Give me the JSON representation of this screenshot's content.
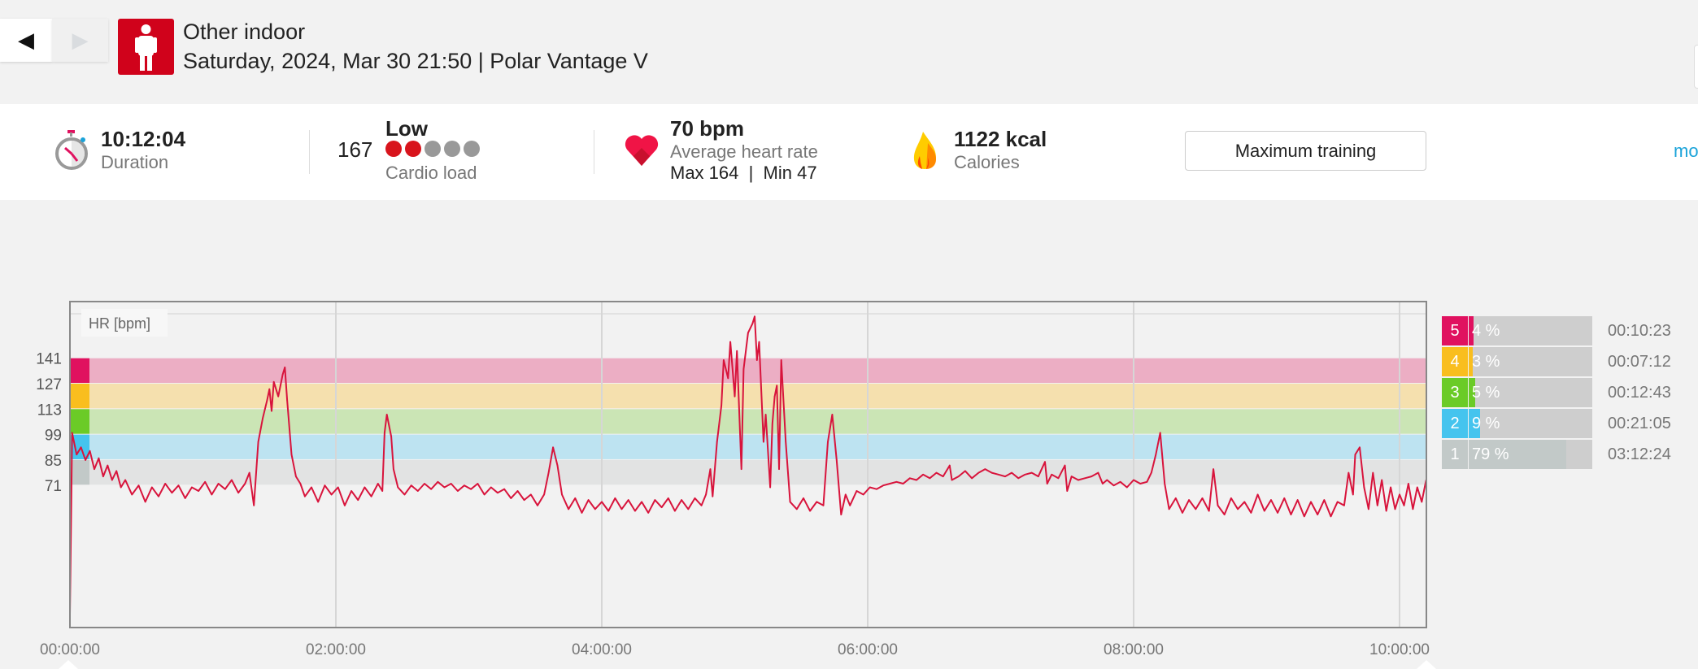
{
  "nav": {
    "back_icon": "◀",
    "forward_icon": "▶"
  },
  "header": {
    "sport_icon": "person-standing-icon",
    "title": "Other indoor",
    "subtitle": "Saturday, 2024, Mar 30 21:50 | Polar Vantage V"
  },
  "summary": {
    "duration": {
      "value": "10:12:04",
      "label": "Duration"
    },
    "cardio": {
      "value": "167",
      "level": "Low",
      "label": "Cardio load",
      "dots_filled": 2,
      "dots_total": 5
    },
    "heart_rate": {
      "value": "70 bpm",
      "label": "Average heart rate",
      "minmax": "Max 164  |  Min 47"
    },
    "calories": {
      "value": "1122 kcal",
      "label": "Calories"
    },
    "training_button": "Maximum training",
    "more_link": "mo"
  },
  "colors": {
    "line": "#d8143c",
    "accent": "#d0021b",
    "link": "#1aa3d9"
  },
  "zones": [
    {
      "zone": "5",
      "percent": 4,
      "percent_label": "4 %",
      "time": "00:10:23",
      "color": "#e0115f",
      "band": "#ecaec4",
      "range": [
        127,
        141
      ]
    },
    {
      "zone": "4",
      "percent": 3,
      "percent_label": "3 %",
      "time": "00:07:12",
      "color": "#f9be1e",
      "band": "#f5e0ae",
      "range": [
        113,
        127
      ]
    },
    {
      "zone": "3",
      "percent": 5,
      "percent_label": "5 %",
      "time": "00:12:43",
      "color": "#6bcb27",
      "band": "#cbe5b5",
      "range": [
        99,
        113
      ]
    },
    {
      "zone": "2",
      "percent": 9,
      "percent_label": "9 %",
      "time": "00:21:05",
      "color": "#45c4ee",
      "band": "#bde3f1",
      "range": [
        85,
        99
      ]
    },
    {
      "zone": "1",
      "percent": 79,
      "percent_label": "79 %",
      "time": "03:12:24",
      "color": "#c2c9c8",
      "band": "#e2e3e3",
      "range": [
        71,
        85
      ]
    }
  ],
  "chart_data": {
    "type": "line",
    "title": "",
    "ylabel": "HR [bpm]",
    "xlabel": "",
    "x_unit": "minutes",
    "xlim": [
      0,
      612
    ],
    "ylim": [
      -7,
      171
    ],
    "yticks": [
      141,
      127,
      113,
      99,
      85,
      71
    ],
    "xticks": [
      {
        "value": 0,
        "label": "00:00:00"
      },
      {
        "value": 120,
        "label": "02:00:00"
      },
      {
        "value": 240,
        "label": "04:00:00"
      },
      {
        "value": 360,
        "label": "06:00:00"
      },
      {
        "value": 480,
        "label": "08:00:00"
      },
      {
        "value": 600,
        "label": "10:00:00"
      }
    ],
    "grid": true,
    "series": [
      {
        "name": "HR",
        "points": [
          [
            0,
            0
          ],
          [
            1,
            100
          ],
          [
            3,
            88
          ],
          [
            5,
            92
          ],
          [
            7,
            85
          ],
          [
            9,
            90
          ],
          [
            11,
            80
          ],
          [
            13,
            86
          ],
          [
            15,
            76
          ],
          [
            17,
            82
          ],
          [
            19,
            74
          ],
          [
            21,
            79
          ],
          [
            23,
            70
          ],
          [
            25,
            74
          ],
          [
            28,
            66
          ],
          [
            31,
            71
          ],
          [
            34,
            62
          ],
          [
            37,
            70
          ],
          [
            40,
            65
          ],
          [
            43,
            72
          ],
          [
            46,
            67
          ],
          [
            49,
            71
          ],
          [
            52,
            64
          ],
          [
            55,
            70
          ],
          [
            58,
            68
          ],
          [
            61,
            73
          ],
          [
            64,
            66
          ],
          [
            67,
            72
          ],
          [
            70,
            69
          ],
          [
            73,
            74
          ],
          [
            76,
            67
          ],
          [
            79,
            72
          ],
          [
            81,
            78
          ],
          [
            83,
            60
          ],
          [
            85,
            95
          ],
          [
            87,
            108
          ],
          [
            89,
            118
          ],
          [
            90,
            124
          ],
          [
            91,
            112
          ],
          [
            92,
            128
          ],
          [
            94,
            120
          ],
          [
            96,
            132
          ],
          [
            97,
            136
          ],
          [
            98,
            118
          ],
          [
            100,
            88
          ],
          [
            102,
            76
          ],
          [
            104,
            72
          ],
          [
            106,
            65
          ],
          [
            109,
            70
          ],
          [
            112,
            62
          ],
          [
            115,
            71
          ],
          [
            118,
            66
          ],
          [
            121,
            70
          ],
          [
            124,
            60
          ],
          [
            127,
            68
          ],
          [
            130,
            63
          ],
          [
            133,
            70
          ],
          [
            136,
            65
          ],
          [
            139,
            72
          ],
          [
            141,
            68
          ],
          [
            142,
            100
          ],
          [
            143,
            110
          ],
          [
            144,
            104
          ],
          [
            145,
            98
          ],
          [
            146,
            80
          ],
          [
            148,
            70
          ],
          [
            151,
            66
          ],
          [
            154,
            71
          ],
          [
            157,
            68
          ],
          [
            160,
            72
          ],
          [
            163,
            69
          ],
          [
            166,
            73
          ],
          [
            169,
            70
          ],
          [
            172,
            72
          ],
          [
            175,
            68
          ],
          [
            178,
            71
          ],
          [
            181,
            69
          ],
          [
            184,
            72
          ],
          [
            187,
            66
          ],
          [
            190,
            70
          ],
          [
            193,
            67
          ],
          [
            196,
            69
          ],
          [
            199,
            64
          ],
          [
            202,
            68
          ],
          [
            205,
            63
          ],
          [
            208,
            66
          ],
          [
            211,
            60
          ],
          [
            214,
            66
          ],
          [
            216,
            78
          ],
          [
            218,
            92
          ],
          [
            220,
            82
          ],
          [
            222,
            66
          ],
          [
            225,
            58
          ],
          [
            228,
            64
          ],
          [
            231,
            56
          ],
          [
            234,
            63
          ],
          [
            237,
            58
          ],
          [
            240,
            62
          ],
          [
            243,
            57
          ],
          [
            246,
            64
          ],
          [
            249,
            58
          ],
          [
            252,
            63
          ],
          [
            255,
            57
          ],
          [
            258,
            62
          ],
          [
            261,
            56
          ],
          [
            264,
            63
          ],
          [
            267,
            59
          ],
          [
            270,
            64
          ],
          [
            273,
            57
          ],
          [
            276,
            63
          ],
          [
            279,
            58
          ],
          [
            282,
            64
          ],
          [
            285,
            60
          ],
          [
            287,
            66
          ],
          [
            289,
            80
          ],
          [
            290,
            65
          ],
          [
            292,
            95
          ],
          [
            294,
            115
          ],
          [
            295,
            140
          ],
          [
            297,
            130
          ],
          [
            298,
            150
          ],
          [
            300,
            120
          ],
          [
            301,
            145
          ],
          [
            303,
            80
          ],
          [
            304,
            135
          ],
          [
            306,
            155
          ],
          [
            308,
            160
          ],
          [
            309,
            164
          ],
          [
            310,
            140
          ],
          [
            311,
            150
          ],
          [
            313,
            95
          ],
          [
            314,
            110
          ],
          [
            316,
            70
          ],
          [
            317,
            105
          ],
          [
            318,
            120
          ],
          [
            319,
            126
          ],
          [
            320,
            80
          ],
          [
            321,
            140
          ],
          [
            323,
            95
          ],
          [
            325,
            62
          ],
          [
            328,
            58
          ],
          [
            331,
            64
          ],
          [
            334,
            57
          ],
          [
            337,
            62
          ],
          [
            340,
            60
          ],
          [
            342,
            95
          ],
          [
            344,
            110
          ],
          [
            346,
            85
          ],
          [
            348,
            55
          ],
          [
            350,
            66
          ],
          [
            352,
            60
          ],
          [
            355,
            68
          ],
          [
            358,
            66
          ],
          [
            361,
            70
          ],
          [
            364,
            69
          ],
          [
            367,
            71
          ],
          [
            370,
            72
          ],
          [
            373,
            73
          ],
          [
            376,
            72
          ],
          [
            379,
            75
          ],
          [
            382,
            74
          ],
          [
            385,
            77
          ],
          [
            388,
            75
          ],
          [
            391,
            78
          ],
          [
            394,
            76
          ],
          [
            397,
            82
          ],
          [
            398,
            74
          ],
          [
            401,
            76
          ],
          [
            404,
            79
          ],
          [
            407,
            75
          ],
          [
            410,
            78
          ],
          [
            413,
            80
          ],
          [
            416,
            78
          ],
          [
            419,
            77
          ],
          [
            422,
            76
          ],
          [
            425,
            78
          ],
          [
            428,
            75
          ],
          [
            431,
            77
          ],
          [
            434,
            78
          ],
          [
            437,
            76
          ],
          [
            440,
            84
          ],
          [
            441,
            72
          ],
          [
            443,
            77
          ],
          [
            446,
            75
          ],
          [
            449,
            82
          ],
          [
            450,
            68
          ],
          [
            452,
            76
          ],
          [
            455,
            74
          ],
          [
            458,
            75
          ],
          [
            461,
            76
          ],
          [
            464,
            78
          ],
          [
            466,
            72
          ],
          [
            468,
            74
          ],
          [
            471,
            71
          ],
          [
            474,
            73
          ],
          [
            477,
            70
          ],
          [
            480,
            74
          ],
          [
            483,
            72
          ],
          [
            486,
            73
          ],
          [
            488,
            78
          ],
          [
            490,
            88
          ],
          [
            492,
            100
          ],
          [
            494,
            72
          ],
          [
            496,
            58
          ],
          [
            499,
            64
          ],
          [
            502,
            56
          ],
          [
            505,
            63
          ],
          [
            508,
            58
          ],
          [
            511,
            64
          ],
          [
            514,
            57
          ],
          [
            516,
            80
          ],
          [
            518,
            60
          ],
          [
            521,
            55
          ],
          [
            524,
            64
          ],
          [
            527,
            58
          ],
          [
            530,
            62
          ],
          [
            533,
            56
          ],
          [
            536,
            66
          ],
          [
            539,
            57
          ],
          [
            542,
            63
          ],
          [
            545,
            56
          ],
          [
            548,
            64
          ],
          [
            551,
            55
          ],
          [
            554,
            63
          ],
          [
            557,
            54
          ],
          [
            560,
            62
          ],
          [
            563,
            55
          ],
          [
            566,
            63
          ],
          [
            569,
            54
          ],
          [
            572,
            62
          ],
          [
            575,
            60
          ],
          [
            577,
            78
          ],
          [
            579,
            66
          ],
          [
            580,
            88
          ],
          [
            582,
            92
          ],
          [
            584,
            70
          ],
          [
            586,
            58
          ],
          [
            588,
            78
          ],
          [
            590,
            60
          ],
          [
            592,
            74
          ],
          [
            594,
            57
          ],
          [
            596,
            70
          ],
          [
            598,
            58
          ],
          [
            600,
            66
          ],
          [
            602,
            60
          ],
          [
            604,
            72
          ],
          [
            606,
            58
          ],
          [
            608,
            70
          ],
          [
            610,
            62
          ],
          [
            612,
            74
          ]
        ]
      }
    ]
  }
}
